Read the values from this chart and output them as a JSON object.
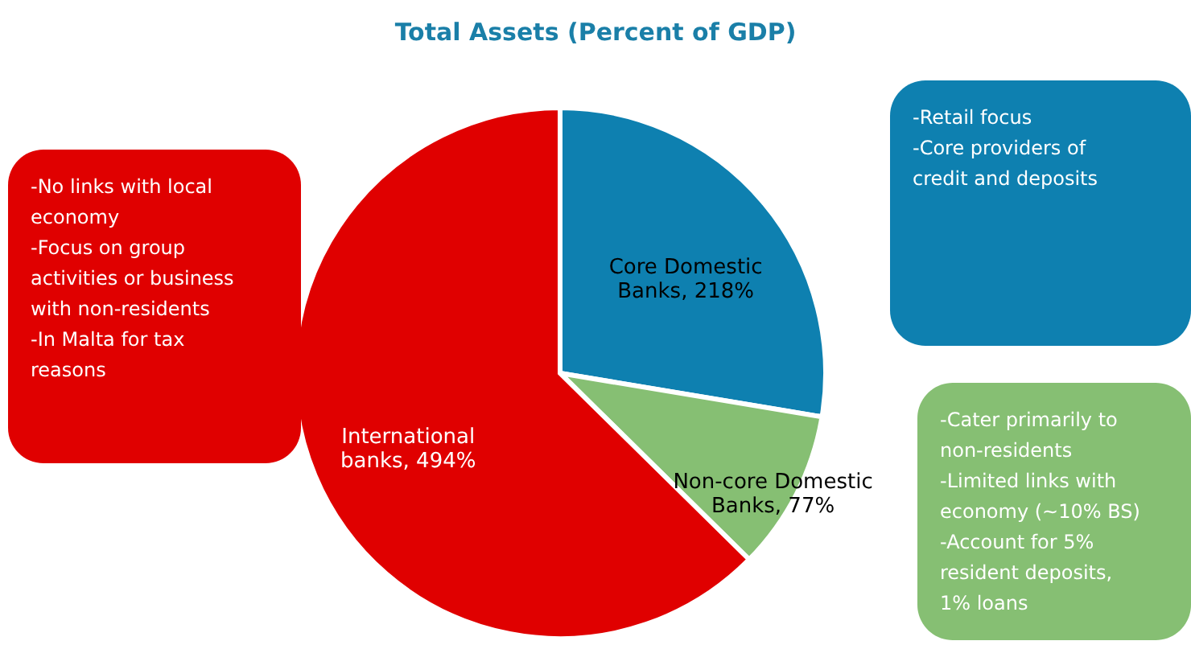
{
  "chart_data": {
    "type": "pie",
    "title": "Total Assets (Percent of GDP)",
    "categories": [
      "Core Domestic Banks",
      "Non-core Domestic Banks",
      "International banks"
    ],
    "values": [
      218,
      77,
      494
    ],
    "value_labels": [
      "218%",
      "77%",
      "494%"
    ],
    "colors": [
      "#0e80b0",
      "#86bf73",
      "#e00000"
    ],
    "legend": false,
    "annotations": [
      "-Retail focus\n-Core providers  of\ncredit and deposits",
      "-Cater primarily to\nnon-residents\n-Limited links with\neconomy (~10% BS)\n-Account for 5%\nresident deposits,\n1% loans",
      "-No links with local\neconomy\n-Focus on group\nactivities or business\nwith non-residents\n-In Malta for tax\nreasons"
    ]
  }
}
